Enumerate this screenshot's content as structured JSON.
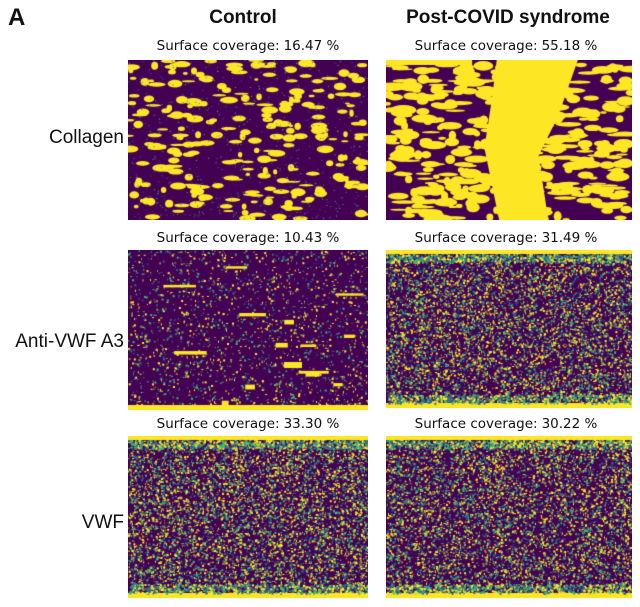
{
  "panel_letter": "A",
  "columns": [
    "Control",
    "Post-COVID syndrome"
  ],
  "coverage_label": "Surface coverage:",
  "rows": [
    {
      "label": "Collagen",
      "control": {
        "coverage": "16.47 %",
        "pattern": "blobs",
        "density": 0.16
      },
      "post_covid": {
        "coverage": "55.18 %",
        "pattern": "band",
        "density": 0.55
      }
    },
    {
      "label": "Anti-VWF A3",
      "control": {
        "coverage": "10.43 %",
        "pattern": "sparse-streaks",
        "density": 0.1
      },
      "post_covid": {
        "coverage": "31.49 %",
        "pattern": "speckle",
        "density": 0.31
      }
    },
    {
      "label": "VWF",
      "control": {
        "coverage": "33.30 %",
        "pattern": "speckle",
        "density": 0.33
      },
      "post_covid": {
        "coverage": "30.22 %",
        "pattern": "speckle",
        "density": 0.3
      }
    }
  ],
  "colors": {
    "background": "#440154",
    "signal": "#fde725",
    "mid1": "#35b779",
    "mid2": "#31688e"
  }
}
